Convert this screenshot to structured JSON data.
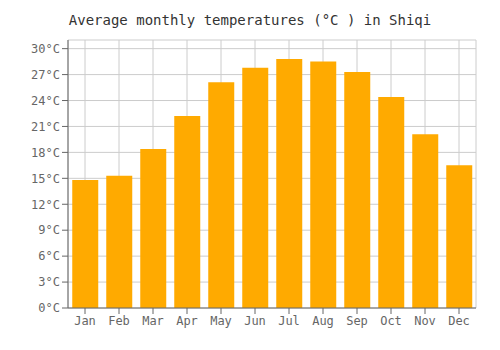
{
  "chart_data": {
    "type": "bar",
    "title": "Average monthly temperatures (°C ) in Shiqi",
    "categories": [
      "Jan",
      "Feb",
      "Mar",
      "Apr",
      "May",
      "Jun",
      "Jul",
      "Aug",
      "Sep",
      "Oct",
      "Nov",
      "Dec"
    ],
    "values": [
      14.8,
      15.3,
      18.4,
      22.2,
      26.1,
      27.8,
      28.8,
      28.5,
      27.3,
      24.4,
      20.1,
      16.5
    ],
    "color": "#FFAA00",
    "ylim": [
      0,
      31
    ],
    "yticks": [
      {
        "value": 0,
        "label": "0°C"
      },
      {
        "value": 3,
        "label": "3°C"
      },
      {
        "value": 6,
        "label": "6°C"
      },
      {
        "value": 9,
        "label": "9°C"
      },
      {
        "value": 12,
        "label": "12°C"
      },
      {
        "value": 15,
        "label": "15°C"
      },
      {
        "value": 18,
        "label": "18°C"
      },
      {
        "value": 21,
        "label": "21°C"
      },
      {
        "value": 24,
        "label": "24°C"
      },
      {
        "value": 27,
        "label": "27°C"
      },
      {
        "value": 30,
        "label": "30°C"
      }
    ],
    "grid": true
  }
}
